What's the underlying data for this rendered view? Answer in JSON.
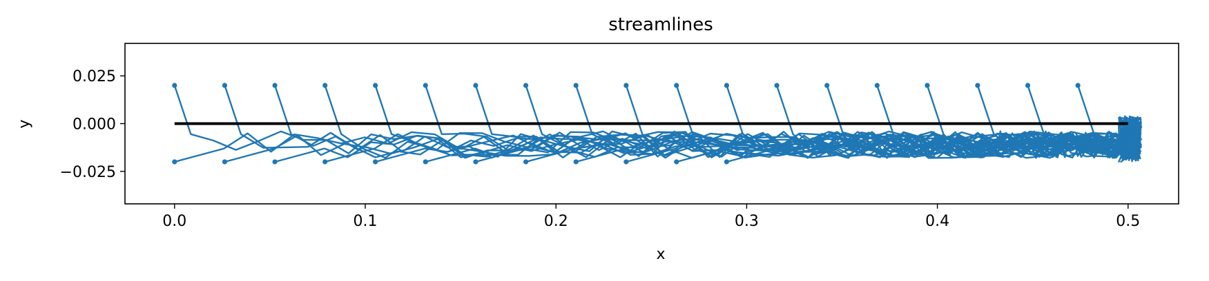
{
  "chart_data": {
    "type": "line",
    "title": "streamlines",
    "xlabel": "x",
    "ylabel": "y",
    "xlim": [
      -0.026,
      0.5265
    ],
    "ylim": [
      -0.042,
      0.042
    ],
    "x_ticks": [
      0.0,
      0.1,
      0.2,
      0.3,
      0.4,
      0.5
    ],
    "x_tick_labels": [
      "0.0",
      "0.1",
      "0.2",
      "0.3",
      "0.4",
      "0.5"
    ],
    "y_ticks": [
      0.025,
      0.0,
      -0.025
    ],
    "y_tick_labels": [
      "0.025",
      "0.000",
      "−0.025"
    ],
    "grid": false,
    "plate": {
      "x": [
        0.0,
        0.5
      ],
      "y": [
        0.0,
        0.0
      ],
      "color": "#000000"
    },
    "streamline_color": "#1f77b4",
    "seeds_top": {
      "x": [
        0.0,
        0.0263,
        0.0526,
        0.0789,
        0.1053,
        0.1316,
        0.1579,
        0.1842,
        0.2105,
        0.2368,
        0.2632,
        0.2895,
        0.3158,
        0.3421,
        0.3684,
        0.3947,
        0.4211,
        0.4474,
        0.4737
      ],
      "y": 0.02
    },
    "seeds_bottom": {
      "x": [
        0.0,
        0.0263,
        0.0526,
        0.0789,
        0.1053,
        0.1316,
        0.1579,
        0.1842,
        0.2105,
        0.2368,
        0.2632,
        0.2895
      ],
      "y": -0.02
    },
    "wake_end_x": 0.505,
    "wake_y_range": [
      -0.02,
      0.004
    ]
  }
}
